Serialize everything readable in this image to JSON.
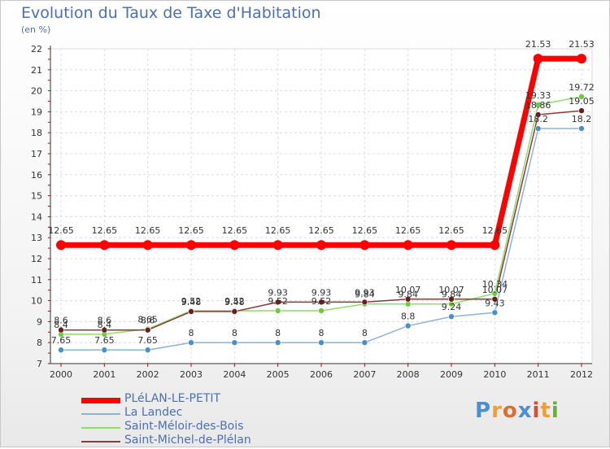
{
  "title": "Evolution du Taux de Taxe d'Habitation",
  "subtitle": "(en %)",
  "brand": {
    "letters": [
      "P",
      "r",
      "o",
      "x",
      "i",
      "t",
      "i"
    ],
    "colors": [
      "#4a8fd4",
      "#f0a030",
      "#e26a2c",
      "#4a8fd4",
      "#e24a2c",
      "#f0a030",
      "#6aaf3c"
    ]
  },
  "chart_data": {
    "type": "line",
    "x": [
      "2000",
      "2001",
      "2002",
      "2003",
      "2004",
      "2005",
      "2006",
      "2007",
      "2008",
      "2009",
      "2010",
      "2011",
      "2012"
    ],
    "ylim": [
      7,
      22
    ],
    "yticks": [
      "7",
      "8",
      "9",
      "10",
      "11",
      "12",
      "13",
      "14",
      "15",
      "16",
      "17",
      "18",
      "19",
      "20",
      "21",
      "22"
    ],
    "grid": true,
    "legend_position": "bottom-left",
    "series": [
      {
        "name": "PLéLAN-LE-PETIT",
        "color": "#ff0000",
        "point_color": "#ff0000",
        "width": 7,
        "values": [
          12.65,
          12.65,
          12.65,
          12.65,
          12.65,
          12.65,
          12.65,
          12.65,
          12.65,
          12.65,
          12.65,
          21.53,
          21.53
        ],
        "labels": [
          "12.65",
          "12.65",
          "12.65",
          "12.65",
          "12.65",
          "12.65",
          "12.65",
          "12.65",
          "12.65",
          "12.65",
          "12.65",
          "21.53",
          "21.53"
        ]
      },
      {
        "name": "La Landec",
        "color": "#8db3d6",
        "point_color": "#4a8fc8",
        "width": 1.5,
        "values": [
          7.65,
          7.65,
          7.65,
          8,
          8,
          8,
          8,
          8,
          8.8,
          9.24,
          9.43,
          18.2,
          18.2
        ],
        "labels": [
          "7.65",
          "7.65",
          "7.65",
          "8",
          "8",
          "8",
          "8",
          "8",
          "8.8",
          "9.24",
          "9.43",
          "18.2",
          "18.2"
        ]
      },
      {
        "name": "Saint-Méloir-des-Bois",
        "color": "#8fdc6a",
        "point_color": "#6acc3c",
        "width": 1.5,
        "values": [
          8.4,
          8.4,
          8.65,
          9.52,
          9.52,
          9.52,
          9.52,
          9.84,
          9.84,
          9.84,
          10.34,
          19.33,
          19.72
        ],
        "labels": [
          "8.4",
          "8.4",
          "8.65",
          "9.52",
          "9.52",
          "9.52",
          "9.52",
          "9.84",
          "9.84",
          "9.84",
          "10.34",
          "19.33",
          "19.72"
        ]
      },
      {
        "name": "Saint-Michel-de-Plélan",
        "color": "#8b3a3a",
        "point_color": "#6b1e1e",
        "width": 1.5,
        "values": [
          8.6,
          8.6,
          8.6,
          9.48,
          9.48,
          9.93,
          9.93,
          9.93,
          10.07,
          10.07,
          10.07,
          18.86,
          19.05
        ],
        "labels": [
          "8.6",
          "8.6",
          "8.6",
          "9.48",
          "9.48",
          "9.93",
          "9.93",
          "9.93",
          "10.07",
          "10.07",
          "10.07",
          "18.86",
          "19.05"
        ]
      }
    ]
  }
}
